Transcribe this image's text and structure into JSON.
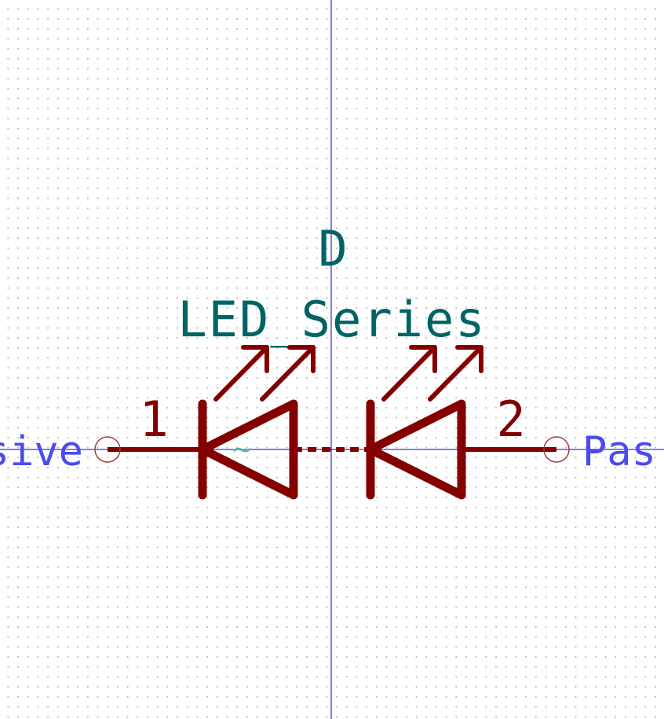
{
  "symbol": {
    "reference": "D",
    "value": "LED_Series",
    "hidden_field_marker": "~"
  },
  "pins": [
    {
      "number": "1",
      "type_label": "sive"
    },
    {
      "number": "2",
      "type_label": "Pas"
    }
  ],
  "colors": {
    "body": "#840000",
    "pin": "#840000",
    "reference": "#006464",
    "value": "#006464",
    "pin_type": "#4b4bef",
    "axis": "#0000c8",
    "grid": "#b8b8b8",
    "hidden_field": "#5ab4b4"
  }
}
